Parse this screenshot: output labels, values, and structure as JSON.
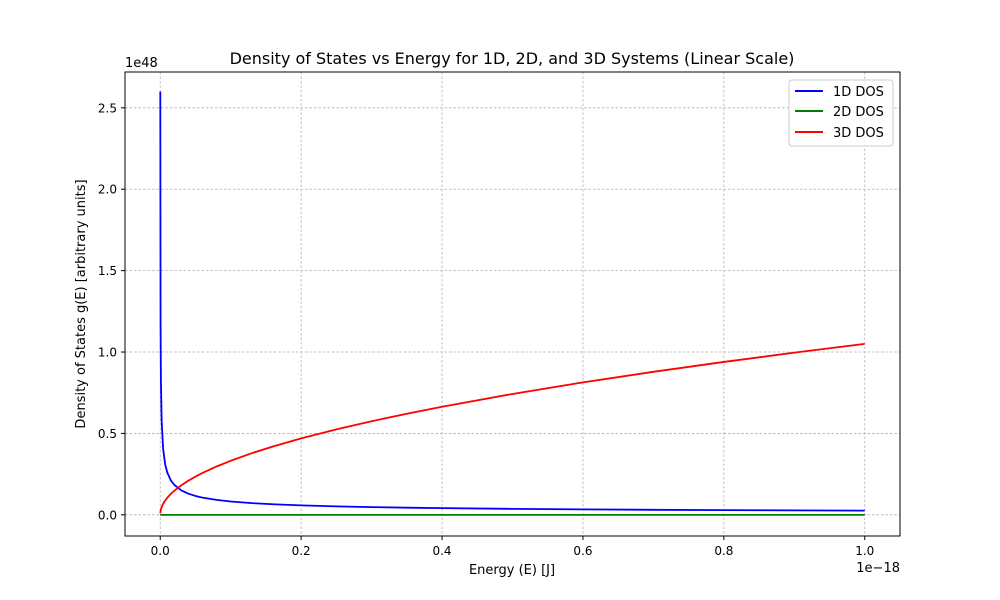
{
  "chart_data": {
    "type": "line",
    "title": "Density of States vs Energy for 1D, 2D, and 3D Systems (Linear Scale)",
    "xlabel": "Energy (E) [J]",
    "ylabel": "Density of States g(E) [arbitrary units]",
    "x_offset_text": "1e−18",
    "y_offset_text": "1e48",
    "x_scale_factor": 1e-18,
    "y_scale_factor": 1e+48,
    "xlim": [
      -0.05,
      1.05
    ],
    "ylim": [
      -0.13,
      2.72
    ],
    "x_ticks": [
      0.0,
      0.2,
      0.4,
      0.6,
      0.8,
      1.0
    ],
    "x_tick_labels": [
      "0.0",
      "0.2",
      "0.4",
      "0.6",
      "0.8",
      "1.0"
    ],
    "y_ticks": [
      0.0,
      0.5,
      1.0,
      1.5,
      2.0,
      2.5
    ],
    "y_tick_labels": [
      "0.0",
      "0.5",
      "1.0",
      "1.5",
      "2.0",
      "2.5"
    ],
    "grid": true,
    "legend_position": "top-right",
    "series": [
      {
        "name": "1D DOS",
        "color": "#0000ff",
        "x": [
          0.0001,
          0.0005,
          0.001,
          0.002,
          0.004,
          0.007,
          0.01,
          0.015,
          0.02,
          0.03,
          0.04,
          0.05,
          0.06,
          0.08,
          0.1,
          0.13,
          0.16,
          0.2,
          0.25,
          0.3,
          0.35,
          0.4,
          0.5,
          0.6,
          0.7,
          0.8,
          0.9,
          1.0
        ],
        "y": [
          2.6,
          1.16,
          0.82,
          0.58,
          0.41,
          0.31,
          0.26,
          0.212,
          0.184,
          0.15,
          0.13,
          0.116,
          0.106,
          0.092,
          0.082,
          0.072,
          0.065,
          0.058,
          0.052,
          0.0475,
          0.044,
          0.041,
          0.0368,
          0.0336,
          0.031,
          0.029,
          0.0274,
          0.026
        ]
      },
      {
        "name": "2D DOS",
        "color": "#008000",
        "x": [
          0.0,
          1.0
        ],
        "y": [
          0.0,
          0.0
        ]
      },
      {
        "name": "3D DOS",
        "color": "#ff0000",
        "x": [
          0.0001,
          0.0005,
          0.001,
          0.002,
          0.004,
          0.007,
          0.01,
          0.015,
          0.02,
          0.03,
          0.04,
          0.05,
          0.06,
          0.08,
          0.1,
          0.13,
          0.16,
          0.2,
          0.25,
          0.3,
          0.35,
          0.4,
          0.5,
          0.6,
          0.7,
          0.8,
          0.9,
          1.0
        ],
        "y": [
          0.0105,
          0.0235,
          0.0332,
          0.047,
          0.0664,
          0.0878,
          0.105,
          0.1286,
          0.1485,
          0.1819,
          0.21,
          0.2348,
          0.2572,
          0.297,
          0.332,
          0.3786,
          0.42,
          0.4696,
          0.525,
          0.5751,
          0.6212,
          0.6641,
          0.7425,
          0.8133,
          0.8785,
          0.9391,
          0.9961,
          1.05
        ]
      }
    ]
  }
}
